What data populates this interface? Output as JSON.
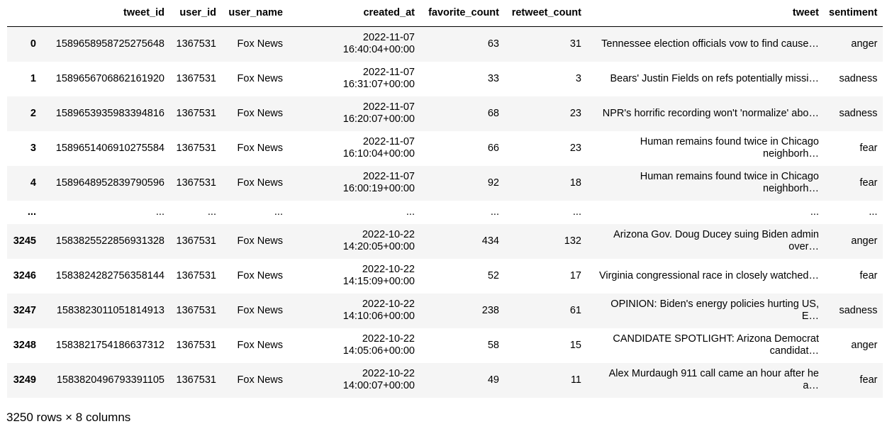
{
  "table": {
    "columns": [
      "",
      "tweet_id",
      "user_id",
      "user_name",
      "created_at",
      "favorite_count",
      "retweet_count",
      "tweet",
      "sentiment"
    ],
    "rows": [
      {
        "index": "0",
        "tweet_id": "1589658958725275648",
        "user_id": "1367531",
        "user_name": "Fox News",
        "created_date": "2022-11-07",
        "created_time": "16:40:04+00:00",
        "favorite_count": "63",
        "retweet_count": "31",
        "tweet_line1": "Tennessee election officials vow to find cause…",
        "tweet_line2": "",
        "sentiment": "anger"
      },
      {
        "index": "1",
        "tweet_id": "1589656706862161920",
        "user_id": "1367531",
        "user_name": "Fox News",
        "created_date": "2022-11-07",
        "created_time": "16:31:07+00:00",
        "favorite_count": "33",
        "retweet_count": "3",
        "tweet_line1": "Bears' Justin Fields on refs potentially missi…",
        "tweet_line2": "",
        "sentiment": "sadness"
      },
      {
        "index": "2",
        "tweet_id": "1589653935983394816",
        "user_id": "1367531",
        "user_name": "Fox News",
        "created_date": "2022-11-07",
        "created_time": "16:20:07+00:00",
        "favorite_count": "68",
        "retweet_count": "23",
        "tweet_line1": "NPR's horrific recording won't 'normalize' abo…",
        "tweet_line2": "",
        "sentiment": "sadness"
      },
      {
        "index": "3",
        "tweet_id": "1589651406910275584",
        "user_id": "1367531",
        "user_name": "Fox News",
        "created_date": "2022-11-07",
        "created_time": "16:10:04+00:00",
        "favorite_count": "66",
        "retweet_count": "23",
        "tweet_line1": "Human remains found twice in Chicago",
        "tweet_line2": "neighborh…",
        "sentiment": "fear"
      },
      {
        "index": "4",
        "tweet_id": "1589648952839790596",
        "user_id": "1367531",
        "user_name": "Fox News",
        "created_date": "2022-11-07",
        "created_time": "16:00:19+00:00",
        "favorite_count": "92",
        "retweet_count": "18",
        "tweet_line1": "Human remains found twice in Chicago",
        "tweet_line2": "neighborh…",
        "sentiment": "fear"
      },
      {
        "index": "3245",
        "tweet_id": "1583825522856931328",
        "user_id": "1367531",
        "user_name": "Fox News",
        "created_date": "2022-10-22",
        "created_time": "14:20:05+00:00",
        "favorite_count": "434",
        "retweet_count": "132",
        "tweet_line1": "Arizona Gov. Doug Ducey suing Biden admin",
        "tweet_line2": "over…",
        "sentiment": "anger"
      },
      {
        "index": "3246",
        "tweet_id": "1583824282756358144",
        "user_id": "1367531",
        "user_name": "Fox News",
        "created_date": "2022-10-22",
        "created_time": "14:15:09+00:00",
        "favorite_count": "52",
        "retweet_count": "17",
        "tweet_line1": "Virginia congressional race in closely watched…",
        "tweet_line2": "",
        "sentiment": "fear"
      },
      {
        "index": "3247",
        "tweet_id": "1583823011051814913",
        "user_id": "1367531",
        "user_name": "Fox News",
        "created_date": "2022-10-22",
        "created_time": "14:10:06+00:00",
        "favorite_count": "238",
        "retweet_count": "61",
        "tweet_line1": "OPINION: Biden's energy policies hurting US,",
        "tweet_line2": "E…",
        "sentiment": "sadness"
      },
      {
        "index": "3248",
        "tweet_id": "1583821754186637312",
        "user_id": "1367531",
        "user_name": "Fox News",
        "created_date": "2022-10-22",
        "created_time": "14:05:06+00:00",
        "favorite_count": "58",
        "retweet_count": "15",
        "tweet_line1": "CANDIDATE SPOTLIGHT: Arizona Democrat",
        "tweet_line2": "candidat…",
        "sentiment": "anger"
      },
      {
        "index": "3249",
        "tweet_id": "1583820496793391105",
        "user_id": "1367531",
        "user_name": "Fox News",
        "created_date": "2022-10-22",
        "created_time": "14:00:07+00:00",
        "favorite_count": "49",
        "retweet_count": "11",
        "tweet_line1": "Alex Murdaugh 911 call came an hour after he",
        "tweet_line2": "a…",
        "sentiment": "fear"
      }
    ],
    "ellipsis": "..."
  },
  "footer": {
    "shape_text": "3250 rows × 8 columns"
  }
}
